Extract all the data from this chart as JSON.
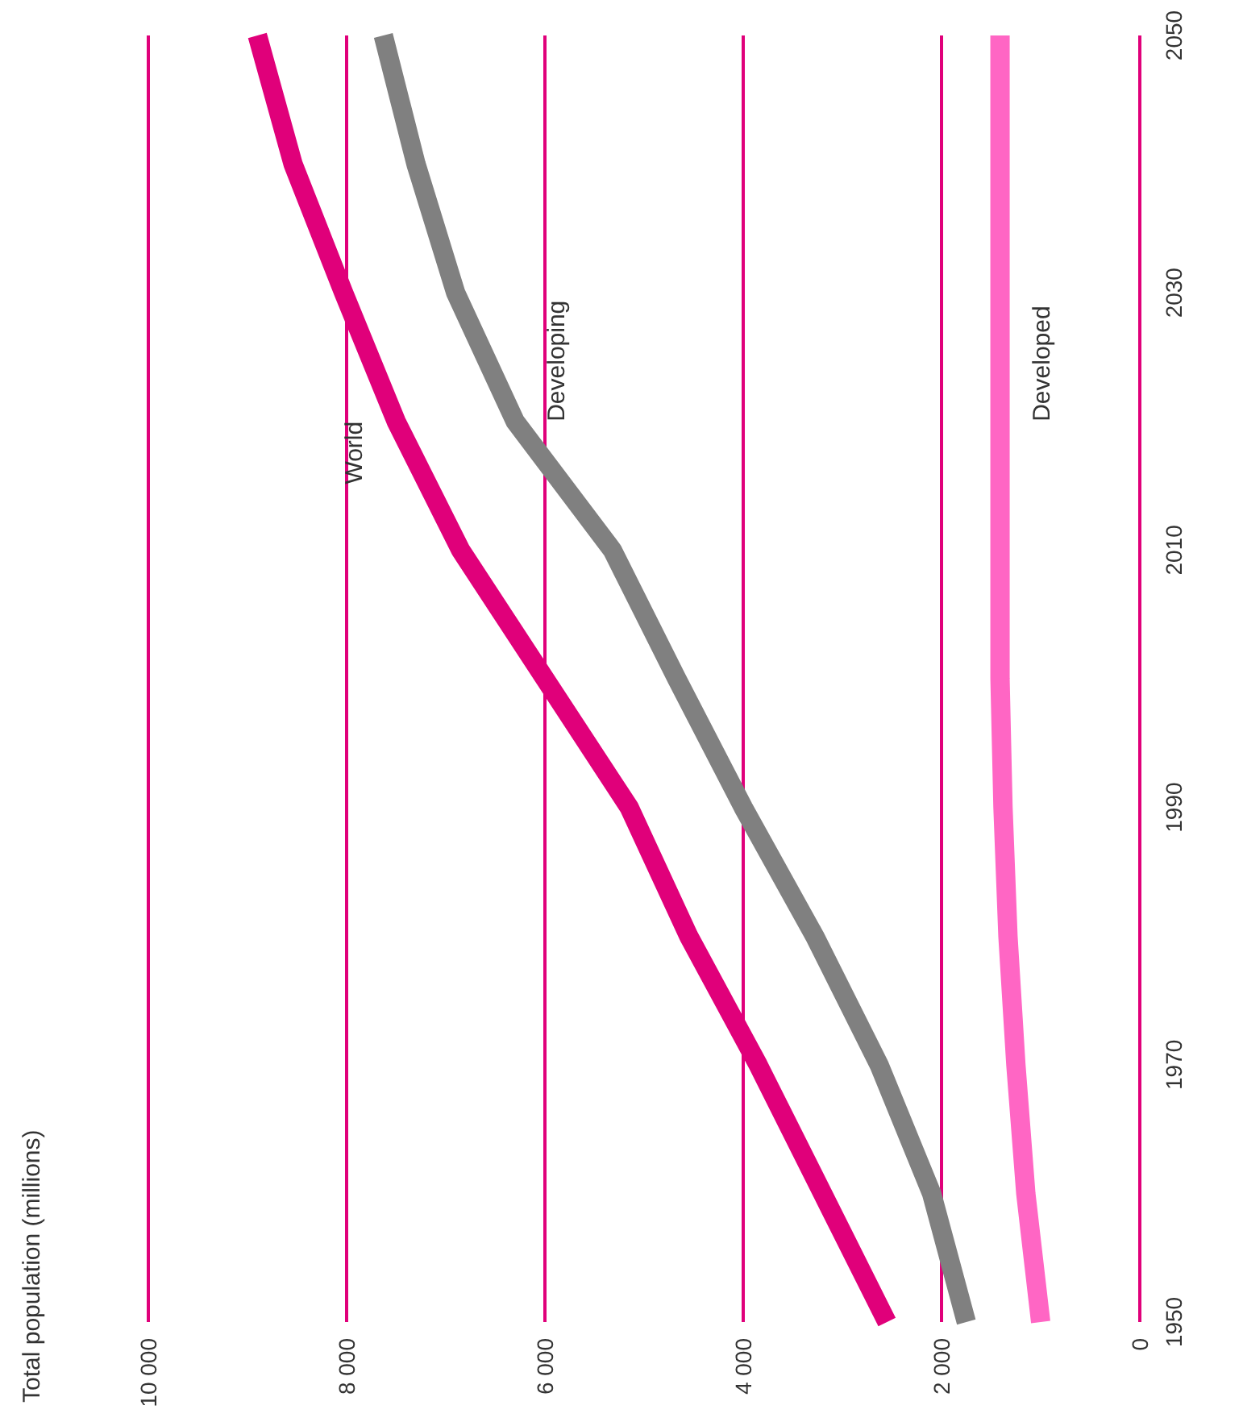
{
  "chart_data": {
    "type": "line",
    "title": "Total population (millions)",
    "series": [
      {
        "name": "World",
        "color": "#e0007a",
        "x": [
          2550,
          3200,
          3850,
          4550,
          5150,
          6000,
          6850,
          7500,
          8030,
          8540,
          8900
        ],
        "values": [
          1950,
          1960,
          1970,
          1980,
          1990,
          2000,
          2010,
          2020,
          2030,
          2040,
          2050
        ]
      },
      {
        "name": "Developing",
        "color": "#808080",
        "x": [
          1750,
          2100,
          2630,
          3280,
          4000,
          4670,
          5320,
          6300,
          6900,
          7300,
          7630
        ],
        "values": [
          1950,
          1960,
          1970,
          1980,
          1990,
          2000,
          2010,
          2020,
          2030,
          2040,
          2050
        ]
      },
      {
        "name": "Developed",
        "color": "#ff66c4",
        "x": [
          1000,
          1150,
          1250,
          1330,
          1380,
          1410,
          1410,
          1410,
          1410,
          1410,
          1410
        ],
        "values": [
          1950,
          1960,
          1970,
          1980,
          1990,
          2000,
          2010,
          2020,
          2030,
          2040,
          2050
        ]
      }
    ],
    "xlim": [
      10000,
      0
    ],
    "xticks": [
      {
        "value": 10000,
        "label": "10 000"
      },
      {
        "value": 8000,
        "label": "8 000"
      },
      {
        "value": 6000,
        "label": "6 000"
      },
      {
        "value": 4000,
        "label": "4 000"
      },
      {
        "value": 2000,
        "label": "2 000"
      },
      0
    ],
    "ylim": [
      1950,
      2050
    ],
    "yticks": [
      1950,
      1970,
      1990,
      2010,
      2030,
      2050
    ],
    "grid": "x",
    "legend": false,
    "marker": "none",
    "line_style": "solid"
  }
}
